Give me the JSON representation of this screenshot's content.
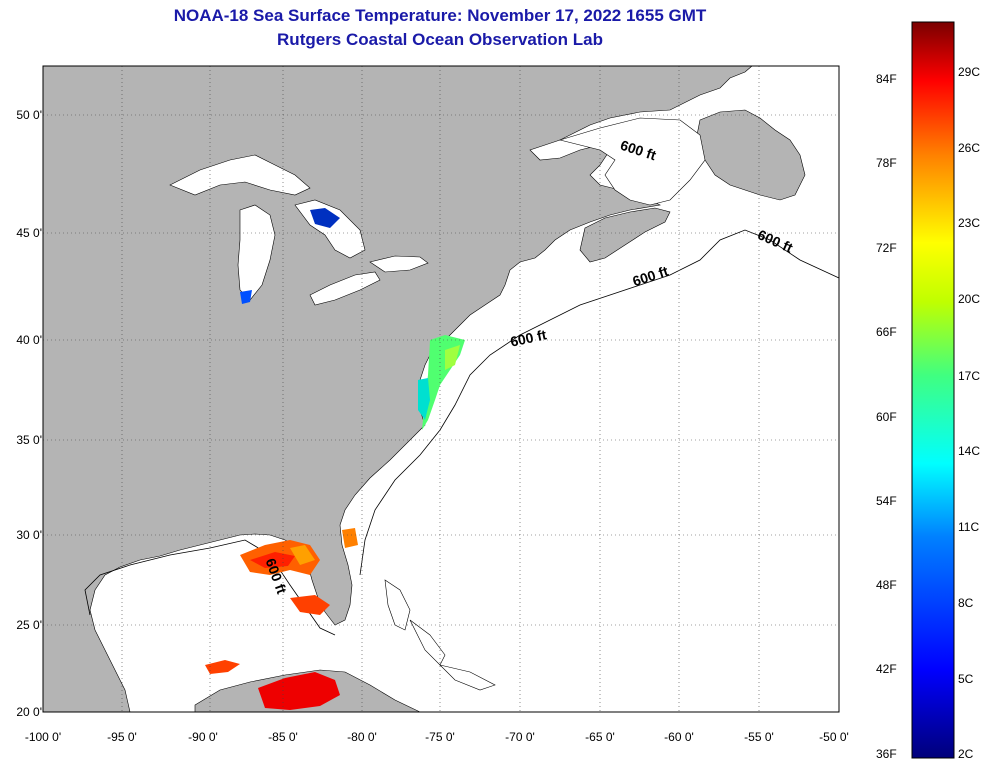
{
  "title_line1": "NOAA-18 Sea Surface Temperature:  November 17, 2022 1655 GMT",
  "title_line2": "Rutgers Coastal Ocean Observation Lab",
  "lat_labels": [
    "50 0'",
    "45 0'",
    "40 0'",
    "35 0'",
    "30 0'",
    "25 0'",
    "20 0'"
  ],
  "lon_labels": [
    "-100 0'",
    "-95 0'",
    "-90 0'",
    "-85 0'",
    "-80 0'",
    "-75 0'",
    "-70 0'",
    "-65 0'",
    "-60 0'",
    "-55 0'",
    "-50 0'"
  ],
  "contour_label": "600 ft",
  "colorbar": {
    "fahrenheit": [
      "84F",
      "78F",
      "72F",
      "66F",
      "60F",
      "54F",
      "48F",
      "42F",
      "36F"
    ],
    "celsius": [
      "29C",
      "26C",
      "23C",
      "20C",
      "17C",
      "14C",
      "11C",
      "8C",
      "5C",
      "2C"
    ]
  },
  "colors": {
    "land": "#b4b4b4",
    "ocean": "#ffffff",
    "title": "#1a1aa8"
  }
}
